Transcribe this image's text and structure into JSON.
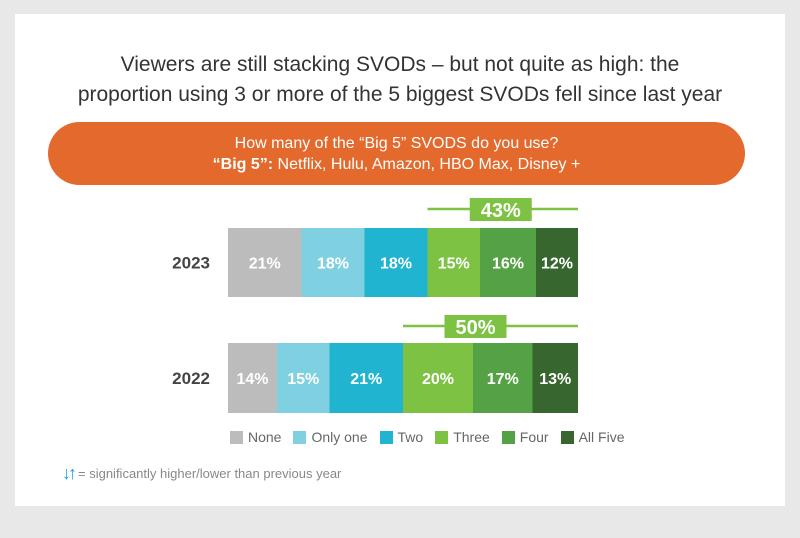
{
  "title_lines": [
    "Viewers are still stacking SVODs – but not quite as high: the",
    "proportion using 3 or more of the 5 biggest SVODs fell since last year"
  ],
  "banner": {
    "question": "How many of the “Big 5” SVODS do you use?",
    "def_label": "“Big 5”:",
    "def_text": " Netflix, Hulu, Amazon, HBO Max, Disney +"
  },
  "footnote": {
    "icon": "down-up-arrows-icon",
    "text": "= significantly higher/lower than previous year"
  },
  "chart_data": {
    "type": "bar",
    "orientation": "horizontal-stacked-100",
    "categories": [
      "2023",
      "2022"
    ],
    "series": [
      {
        "name": "None",
        "color": "#bdbcbc",
        "values": [
          21,
          14
        ]
      },
      {
        "name": "Only one",
        "color": "#7fd0e0",
        "values": [
          18,
          15
        ]
      },
      {
        "name": "Two",
        "color": "#21b4d0",
        "values": [
          18,
          21
        ]
      },
      {
        "name": "Three",
        "color": "#7dc243",
        "values": [
          15,
          20
        ]
      },
      {
        "name": "Four",
        "color": "#55a145",
        "values": [
          16,
          17
        ]
      },
      {
        "name": "All Five",
        "color": "#38662f",
        "values": [
          12,
          13
        ]
      }
    ],
    "annotations": [
      {
        "category": "2023",
        "label": "43%",
        "spans": [
          "Three",
          "Four",
          "All Five"
        ]
      },
      {
        "category": "2022",
        "label": "50%",
        "spans": [
          "Three",
          "Four",
          "All Five"
        ]
      }
    ],
    "annotation_color": "#7dc243",
    "legend": "bottom"
  }
}
